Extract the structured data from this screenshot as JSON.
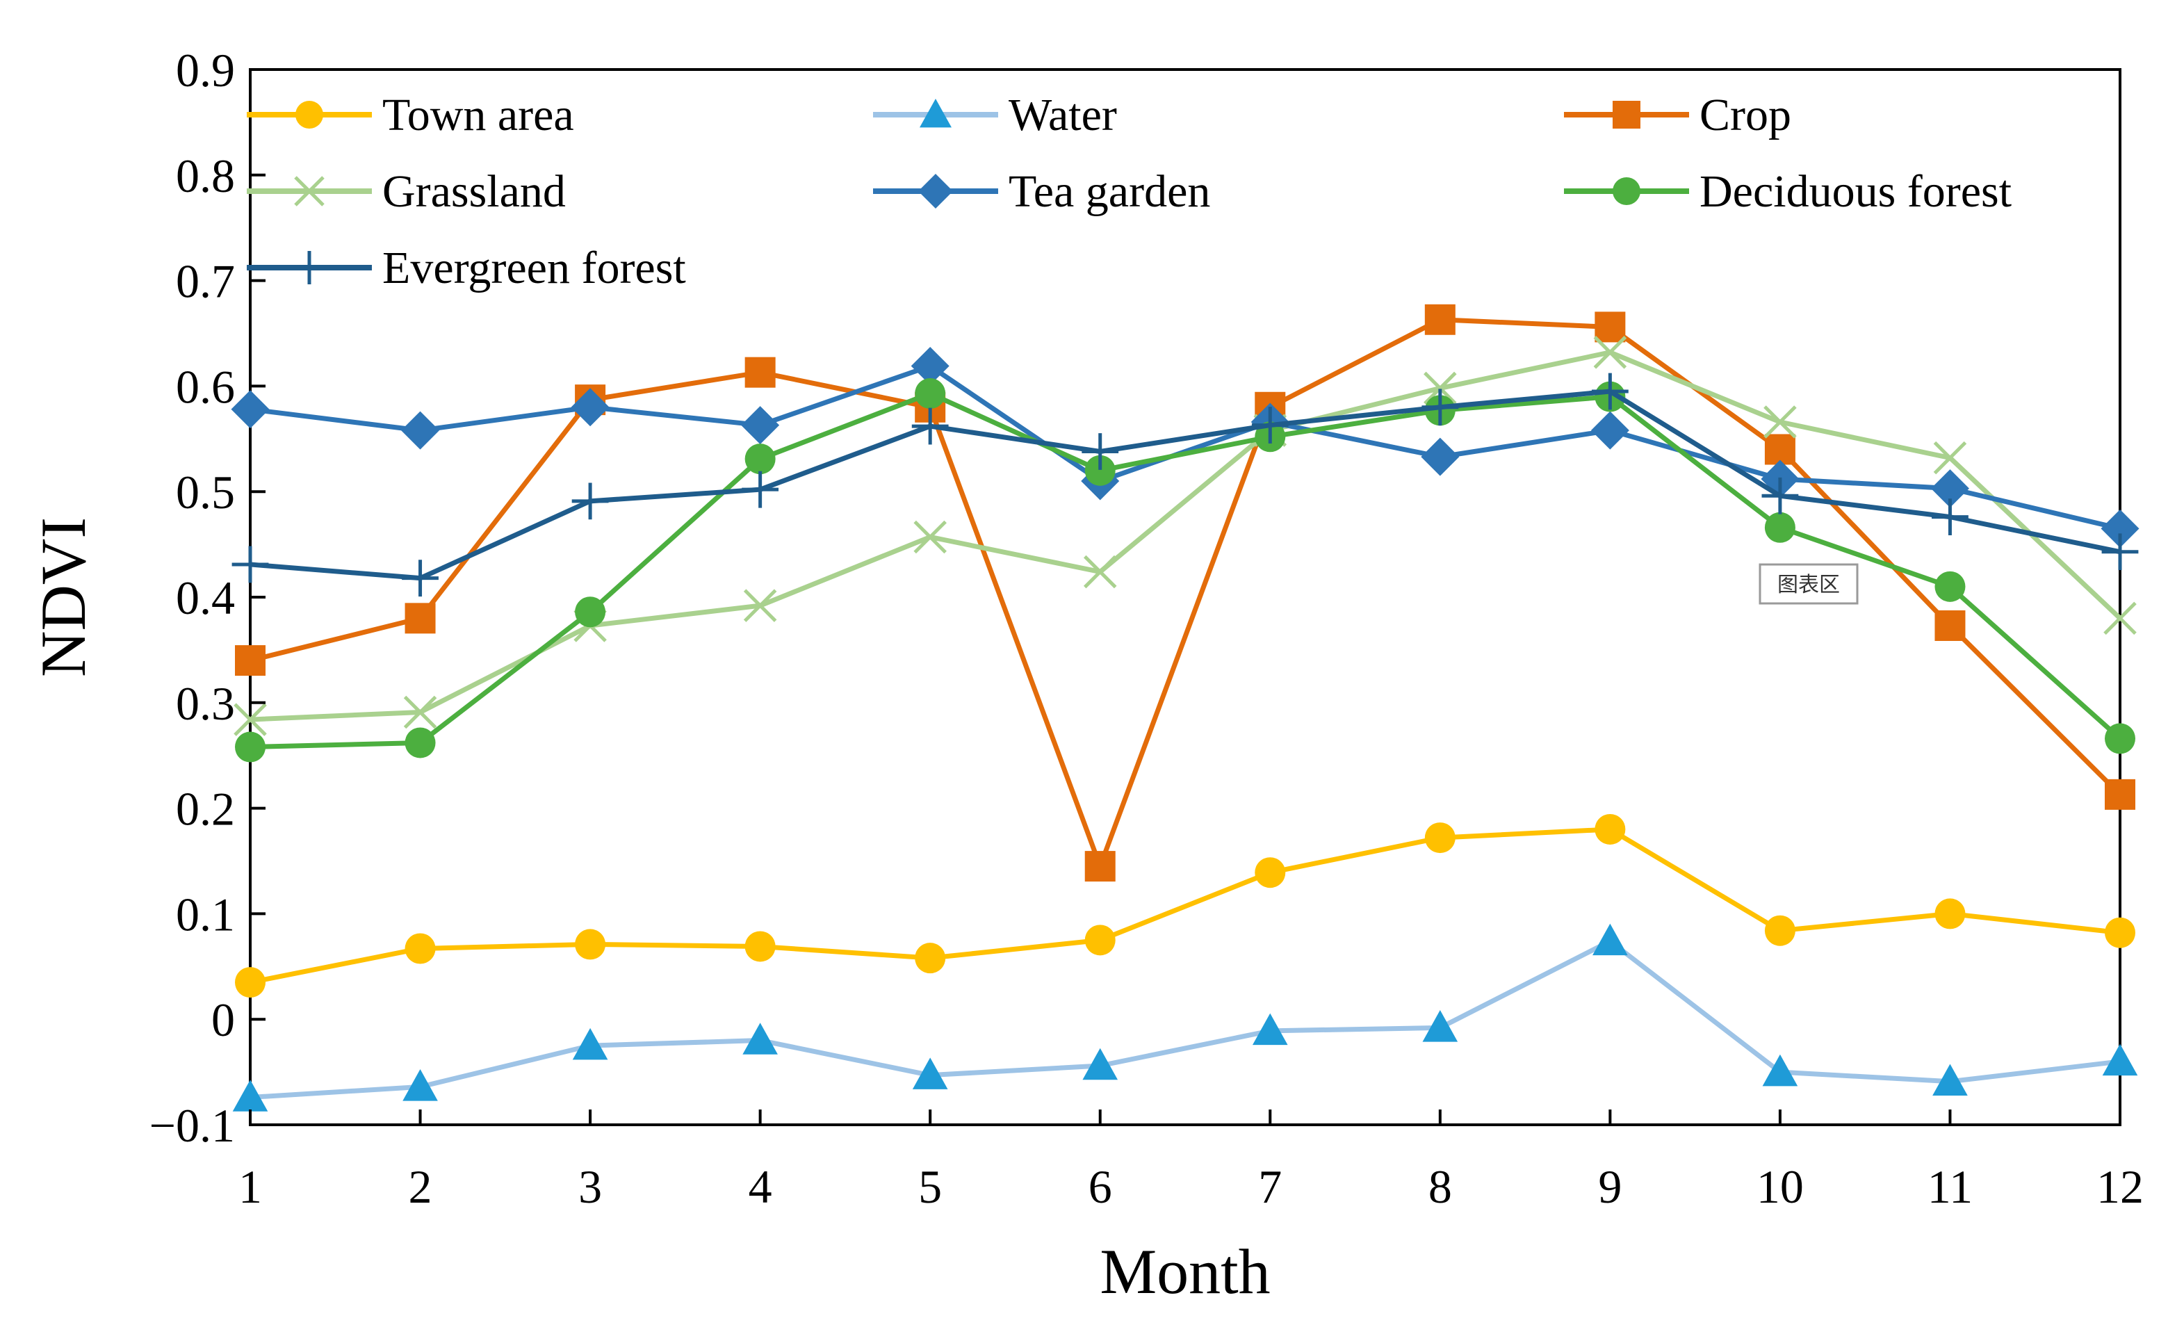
{
  "chart_data": {
    "type": "line",
    "title": "",
    "xlabel": "Month",
    "ylabel": "NDVI",
    "x": [
      1,
      2,
      3,
      4,
      5,
      6,
      7,
      8,
      9,
      10,
      11,
      12
    ],
    "xtick_labels": [
      "1",
      "2",
      "3",
      "4",
      "5",
      "6",
      "7",
      "8",
      "9",
      "10",
      "11",
      "12"
    ],
    "xlim": [
      1,
      12
    ],
    "ylim": [
      -0.1,
      0.9
    ],
    "yticks": [
      -0.1,
      0,
      0.1,
      0.2,
      0.3,
      0.4,
      0.5,
      0.6,
      0.7,
      0.8,
      0.9
    ],
    "ytick_labels": [
      "−0.1",
      "0",
      "0.1",
      "0.2",
      "0.3",
      "0.4",
      "0.5",
      "0.6",
      "0.7",
      "0.8",
      "0.9"
    ],
    "grid": false,
    "legend_position": "top, inside plot area",
    "annotation": "图表区",
    "series": [
      {
        "name": "Town area",
        "color": "#FFC000",
        "marker": "circle",
        "values": [
          0.035,
          0.067,
          0.071,
          0.069,
          0.058,
          0.075,
          0.139,
          0.172,
          0.18,
          0.084,
          0.1,
          0.082
        ]
      },
      {
        "name": "Water",
        "color": "#9DC3E6",
        "marker_color": "#1F9BD7",
        "marker": "triangle",
        "values": [
          -0.074,
          -0.064,
          -0.025,
          -0.02,
          -0.053,
          -0.044,
          -0.011,
          -0.008,
          0.074,
          -0.05,
          -0.059,
          -0.04
        ]
      },
      {
        "name": "Crop",
        "color": "#E36C0A",
        "marker": "square",
        "values": [
          0.34,
          0.38,
          0.587,
          0.613,
          0.58,
          0.145,
          0.58,
          0.663,
          0.656,
          0.54,
          0.373,
          0.213
        ]
      },
      {
        "name": "Grassland",
        "color": "#A9D18E",
        "marker": "x",
        "values": [
          0.284,
          0.291,
          0.373,
          0.392,
          0.457,
          0.424,
          0.558,
          0.598,
          0.632,
          0.566,
          0.532,
          0.38
        ]
      },
      {
        "name": "Tea garden",
        "color": "#2E75B6",
        "marker": "diamond",
        "values": [
          0.578,
          0.558,
          0.58,
          0.563,
          0.619,
          0.51,
          0.566,
          0.533,
          0.558,
          0.512,
          0.503,
          0.465
        ]
      },
      {
        "name": "Deciduous forest",
        "color": "#4CAF3F",
        "marker": "circle",
        "values": [
          0.258,
          0.262,
          0.386,
          0.531,
          0.593,
          0.52,
          0.552,
          0.577,
          0.59,
          0.466,
          0.41,
          0.266
        ]
      },
      {
        "name": "Evergreen forest",
        "color": "#1F5C8C",
        "marker": "plus",
        "values": [
          0.431,
          0.418,
          0.491,
          0.502,
          0.562,
          0.538,
          0.563,
          0.58,
          0.595,
          0.496,
          0.476,
          0.443
        ]
      }
    ]
  }
}
